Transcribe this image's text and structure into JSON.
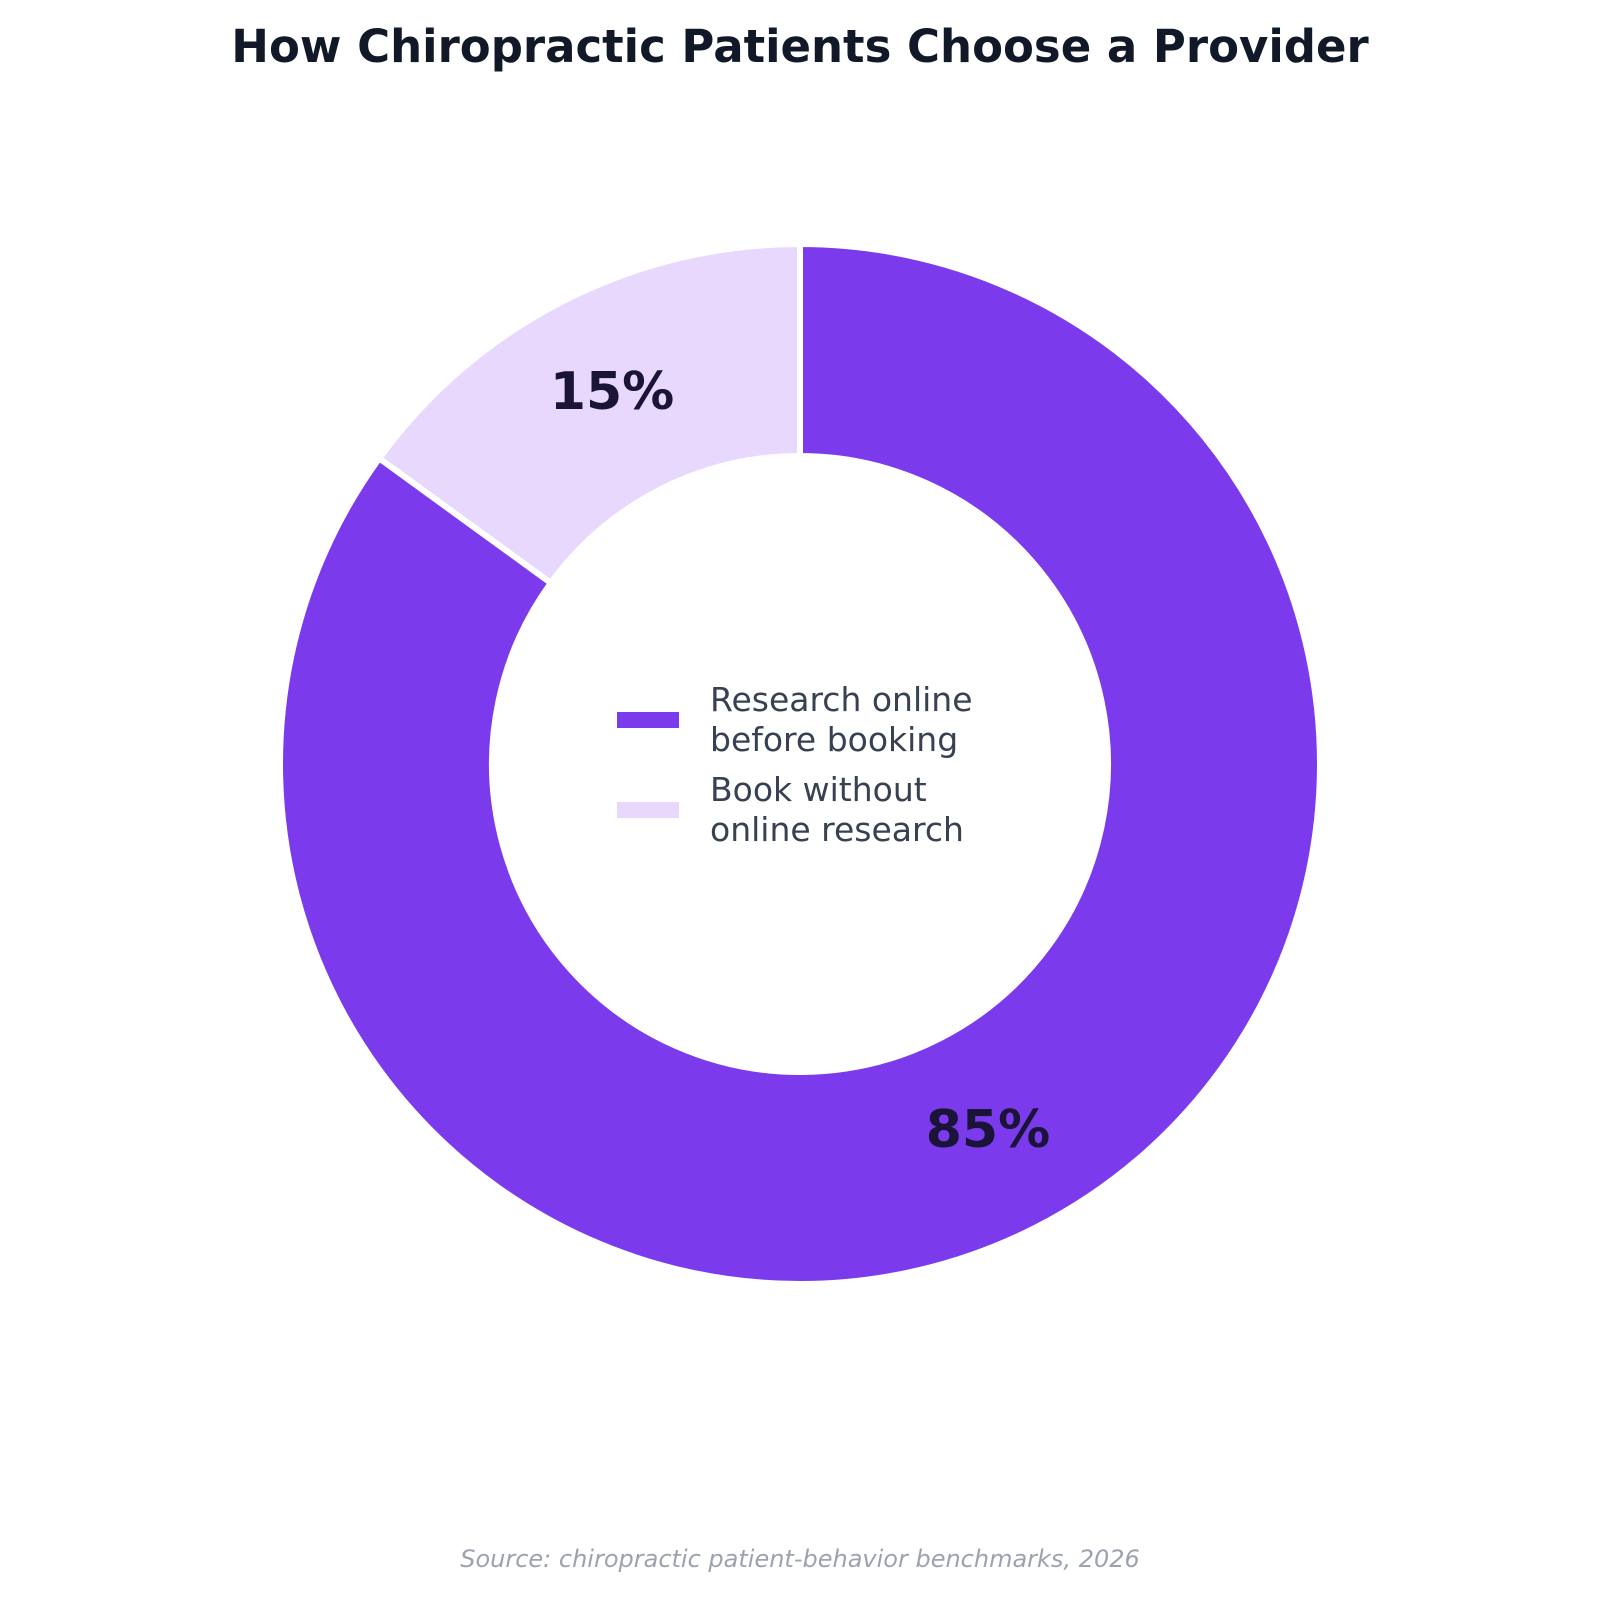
{
  "chart_data": {
    "type": "donut",
    "title": "How Chiropractic Patients Choose a Provider",
    "categories": [
      "Research online before booking",
      "Book without online research"
    ],
    "values": [
      85,
      15
    ],
    "value_labels": [
      "85%",
      "15%"
    ],
    "colors": [
      "#7c3aed",
      "#e9d8fd"
    ],
    "source": "Source: chiropractic patient-behavior benchmarks, 2026"
  }
}
